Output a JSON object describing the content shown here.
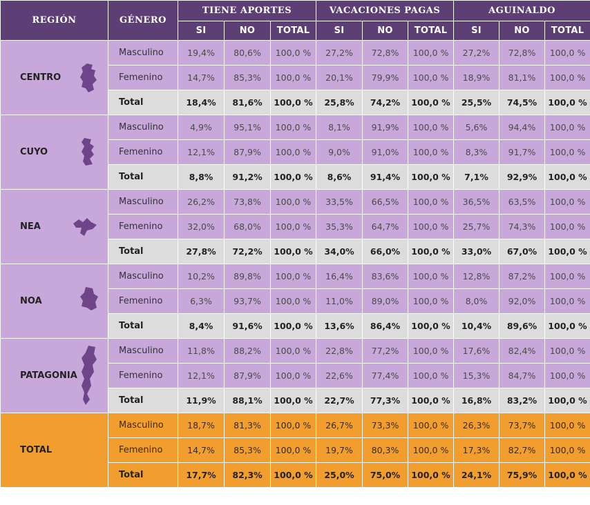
{
  "header": {
    "region": "REGIÓN",
    "genero": "GÉNERO",
    "groups": [
      "TIENE APORTES",
      "VACACIONES PAGAS",
      "AGUINALDO"
    ],
    "sub": [
      "SI",
      "NO",
      "TOTAL"
    ]
  },
  "colors": {
    "header": "#5e3f75",
    "region_bg": "#c8a8da",
    "total_row_bg": "#dcdcdc",
    "grand_total_bg": "#f29e2e"
  },
  "regions": [
    {
      "name": "CENTRO",
      "map_icon": "centro-map-icon",
      "rows": [
        {
          "label": "Masculino",
          "values": [
            "19,4%",
            "80,6%",
            "100,0 %",
            "27,2%",
            "72,8%",
            "100,0 %",
            "27,2%",
            "72,8%",
            "100,0 %"
          ]
        },
        {
          "label": "Femenino",
          "values": [
            "14,7%",
            "85,3%",
            "100,0 %",
            "20,1%",
            "79,9%",
            "100,0 %",
            "18,9%",
            "81,1%",
            "100,0 %"
          ]
        },
        {
          "label": "Total",
          "values": [
            "18,4%",
            "81,6%",
            "100,0 %",
            "25,8%",
            "74,2%",
            "100,0 %",
            "25,5%",
            "74,5%",
            "100,0 %"
          ]
        }
      ]
    },
    {
      "name": "CUYO",
      "map_icon": "cuyo-map-icon",
      "rows": [
        {
          "label": "Masculino",
          "values": [
            "4,9%",
            "95,1%",
            "100,0 %",
            "8,1%",
            "91,9%",
            "100,0 %",
            "5,6%",
            "94,4%",
            "100,0 %"
          ]
        },
        {
          "label": "Femenino",
          "values": [
            "12,1%",
            "87,9%",
            "100,0 %",
            "9,0%",
            "91,0%",
            "100,0 %",
            "8,3%",
            "91,7%",
            "100,0 %"
          ]
        },
        {
          "label": "Total",
          "values": [
            "8,8%",
            "91,2%",
            "100,0 %",
            "8,6%",
            "91,4%",
            "100,0 %",
            "7,1%",
            "92,9%",
            "100,0 %"
          ]
        }
      ]
    },
    {
      "name": "NEA",
      "map_icon": "nea-map-icon",
      "rows": [
        {
          "label": "Masculino",
          "values": [
            "26,2%",
            "73,8%",
            "100,0 %",
            "33,5%",
            "66,5%",
            "100,0 %",
            "36,5%",
            "63,5%",
            "100,0 %"
          ]
        },
        {
          "label": "Femenino",
          "values": [
            "32,0%",
            "68,0%",
            "100,0 %",
            "35,3%",
            "64,7%",
            "100,0 %",
            "25,7%",
            "74,3%",
            "100,0 %"
          ]
        },
        {
          "label": "Total",
          "values": [
            "27,8%",
            "72,2%",
            "100,0 %",
            "34,0%",
            "66,0%",
            "100,0 %",
            "33,0%",
            "67,0%",
            "100,0 %"
          ]
        }
      ]
    },
    {
      "name": "NOA",
      "map_icon": "noa-map-icon",
      "rows": [
        {
          "label": "Masculino",
          "values": [
            "10,2%",
            "89,8%",
            "100,0 %",
            "16,4%",
            "83,6%",
            "100,0 %",
            "12,8%",
            "87,2%",
            "100,0 %"
          ]
        },
        {
          "label": "Femenino",
          "values": [
            "6,3%",
            "93,7%",
            "100,0 %",
            "11,0%",
            "89,0%",
            "100,0 %",
            "8,0%",
            "92,0%",
            "100,0 %"
          ]
        },
        {
          "label": "Total",
          "values": [
            "8,4%",
            "91,6%",
            "100,0 %",
            "13,6%",
            "86,4%",
            "100,0 %",
            "10,4%",
            "89,6%",
            "100,0 %"
          ]
        }
      ]
    },
    {
      "name": "PATAGONIA",
      "map_icon": "patagonia-map-icon",
      "rows": [
        {
          "label": "Masculino",
          "values": [
            "11,8%",
            "88,2%",
            "100,0 %",
            "22,8%",
            "77,2%",
            "100,0 %",
            "17,6%",
            "82,4%",
            "100,0 %"
          ]
        },
        {
          "label": "Femenino",
          "values": [
            "12,1%",
            "87,9%",
            "100,0 %",
            "22,6%",
            "77,4%",
            "100,0 %",
            "15,3%",
            "84,7%",
            "100,0 %"
          ]
        },
        {
          "label": "Total",
          "values": [
            "11,9%",
            "88,1%",
            "100,0 %",
            "22,7%",
            "77,3%",
            "100,0 %",
            "16,8%",
            "83,2%",
            "100,0 %"
          ]
        }
      ]
    },
    {
      "name": "TOTAL",
      "map_icon": "",
      "rows": [
        {
          "label": "Masculino",
          "values": [
            "18,7%",
            "81,3%",
            "100,0 %",
            "26,7%",
            "73,3%",
            "100,0 %",
            "26,3%",
            "73,7%",
            "100,0 %"
          ]
        },
        {
          "label": "Femenino",
          "values": [
            "14,7%",
            "85,3%",
            "100,0 %",
            "19,7%",
            "80,3%",
            "100,0 %",
            "17,3%",
            "82,7%",
            "100,0 %"
          ]
        },
        {
          "label": "Total",
          "values": [
            "17,7%",
            "82,3%",
            "100,0 %",
            "25,0%",
            "75,0%",
            "100,0 %",
            "24,1%",
            "75,9%",
            "100,0 %"
          ]
        }
      ]
    }
  ]
}
